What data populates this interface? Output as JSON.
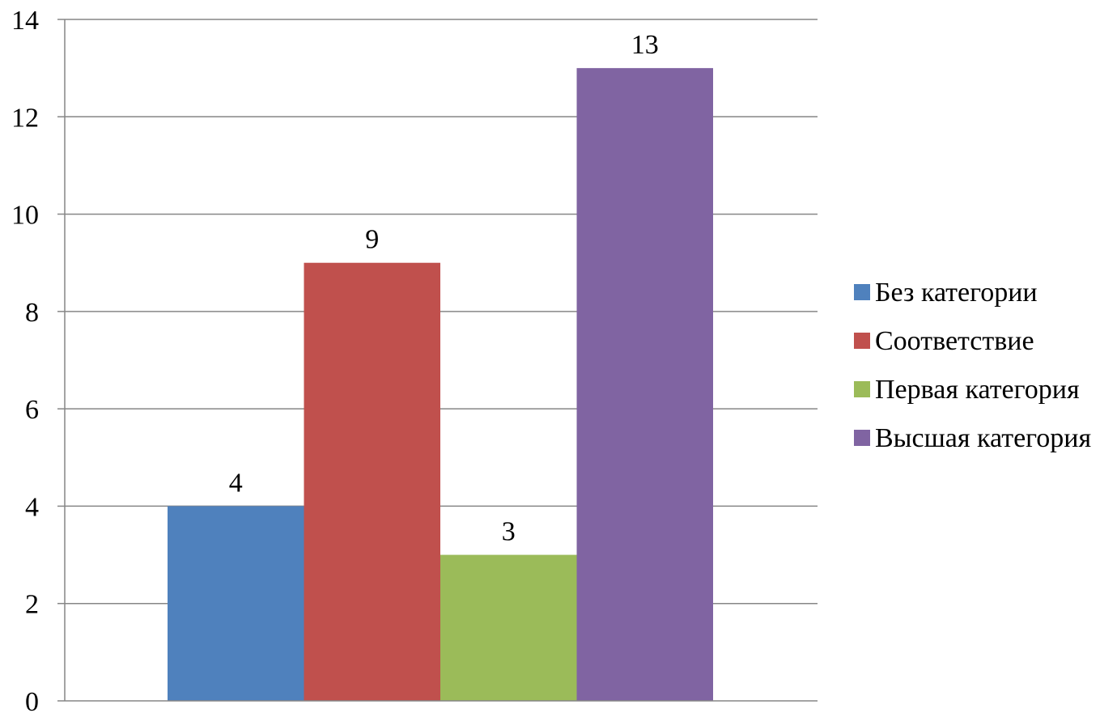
{
  "chart_data": {
    "type": "bar",
    "title": "",
    "xlabel": "",
    "ylabel": "",
    "ylim": [
      0,
      14
    ],
    "yticks": [
      "0",
      "2",
      "4",
      "6",
      "8",
      "10",
      "12",
      "14"
    ],
    "grid": true,
    "legend_position": "right",
    "categories": [
      ""
    ],
    "series": [
      {
        "name": "Без категории",
        "values": [
          4
        ],
        "color": "#4F81BD"
      },
      {
        "name": "Соответствие",
        "values": [
          9
        ],
        "color": "#C0504D"
      },
      {
        "name": "Первая категория",
        "values": [
          3
        ],
        "color": "#9BBB59"
      },
      {
        "name": "Высшая категория",
        "values": [
          13
        ],
        "color": "#8064A2"
      }
    ],
    "data_labels": [
      "4",
      "9",
      "3",
      "13"
    ]
  }
}
